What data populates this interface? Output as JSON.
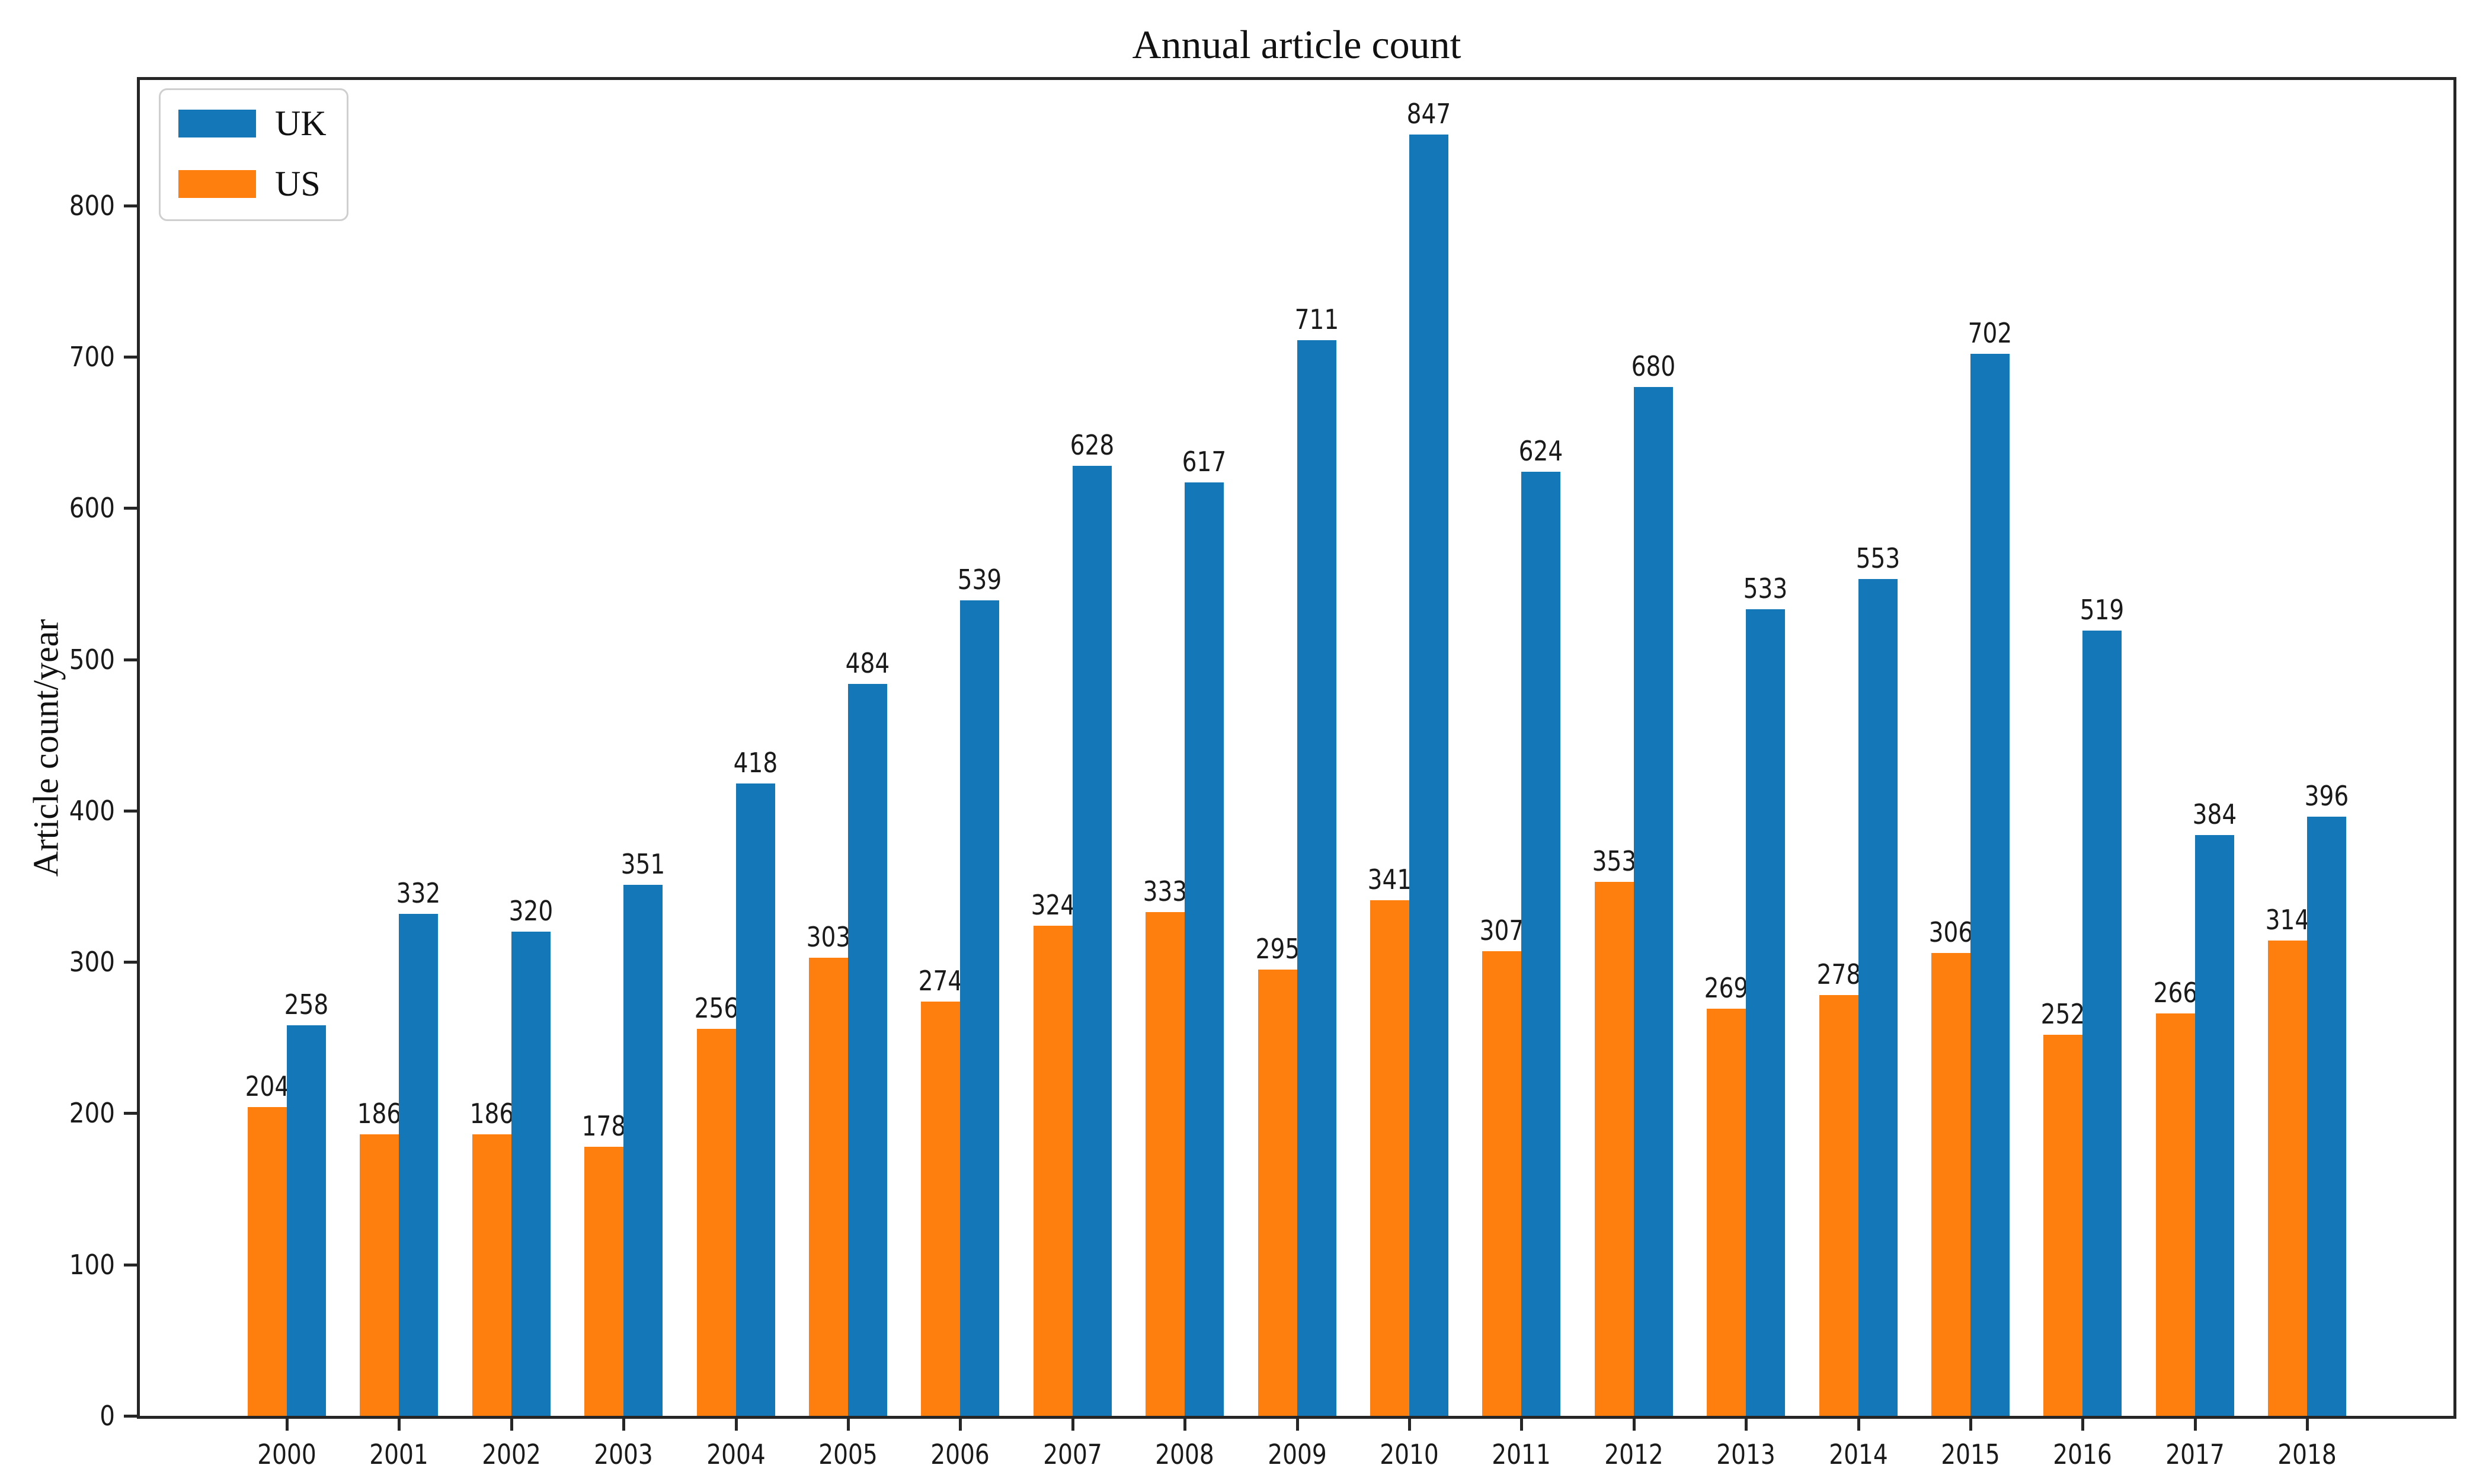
{
  "figure": {
    "background": "#ffffff",
    "spine_color": "#262626",
    "text_color": "#1a1a1a"
  },
  "chart_data": {
    "type": "bar",
    "title": "Annual article count",
    "xlabel": "",
    "ylabel": "Article count/year",
    "categories": [
      "2000",
      "2001",
      "2002",
      "2003",
      "2004",
      "2005",
      "2006",
      "2007",
      "2008",
      "2009",
      "2010",
      "2011",
      "2012",
      "2013",
      "2014",
      "2015",
      "2016",
      "2017",
      "2018"
    ],
    "series": [
      {
        "name": "UK",
        "color": "#1477b8",
        "values": [
          258,
          332,
          320,
          351,
          418,
          484,
          539,
          628,
          617,
          711,
          847,
          624,
          680,
          533,
          553,
          702,
          519,
          384,
          396
        ]
      },
      {
        "name": "US",
        "color": "#ff7f0e",
        "values": [
          204,
          186,
          186,
          178,
          256,
          303,
          274,
          324,
          333,
          295,
          341,
          307,
          353,
          269,
          278,
          306,
          252,
          266,
          314
        ]
      }
    ],
    "bar_order_left_to_right": [
      "US",
      "UK"
    ],
    "value_labels_shown": true,
    "yticks": [
      0,
      100,
      200,
      300,
      400,
      500,
      600,
      700,
      800
    ],
    "ylim": [
      0,
      883
    ],
    "grid": false,
    "legend_position": "upper left"
  },
  "legend": {
    "items": [
      {
        "label": "UK",
        "color": "#1477b8"
      },
      {
        "label": "US",
        "color": "#ff7f0e"
      }
    ]
  }
}
